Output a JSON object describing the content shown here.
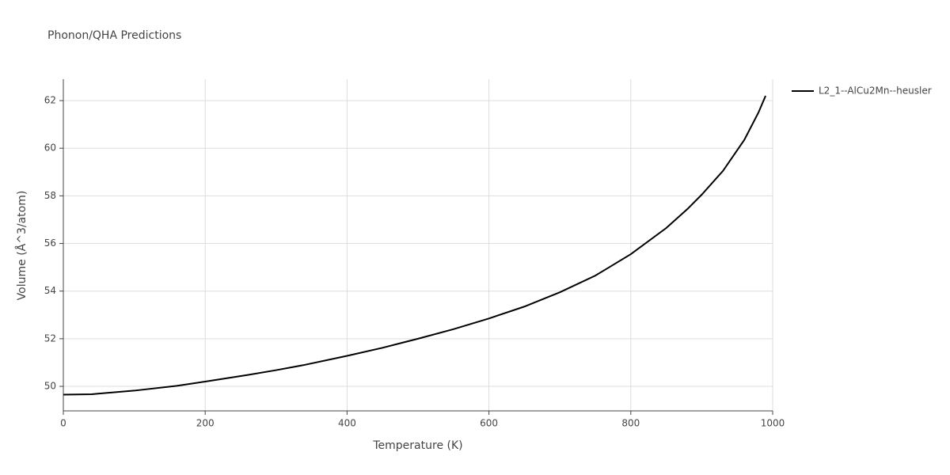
{
  "chart_data": {
    "type": "line",
    "title": "Phonon/QHA Predictions",
    "x_label": "Temperature (K)",
    "y_label": "Volume (Å^3/atom)",
    "x": [
      0,
      40,
      100,
      160,
      200,
      260,
      300,
      340,
      400,
      450,
      500,
      550,
      600,
      650,
      700,
      750,
      800,
      850,
      880,
      900,
      930,
      960,
      980,
      990
    ],
    "series": [
      {
        "name": "L2_1--AlCu2Mn--heusler",
        "color": "#000000",
        "values": [
          49.65,
          49.67,
          49.82,
          50.02,
          50.2,
          50.48,
          50.68,
          50.9,
          51.28,
          51.62,
          52.0,
          52.4,
          52.85,
          53.35,
          53.95,
          54.65,
          55.55,
          56.65,
          57.45,
          58.05,
          59.05,
          60.35,
          61.5,
          62.2
        ]
      }
    ],
    "xlim": [
      0,
      1000
    ],
    "xticks": [
      0,
      200,
      400,
      600,
      800,
      1000
    ],
    "ylim": [
      48.97,
      62.9
    ],
    "yticks": [
      50,
      52,
      54,
      56,
      58,
      60,
      62
    ],
    "grid": true,
    "legend": "right"
  }
}
